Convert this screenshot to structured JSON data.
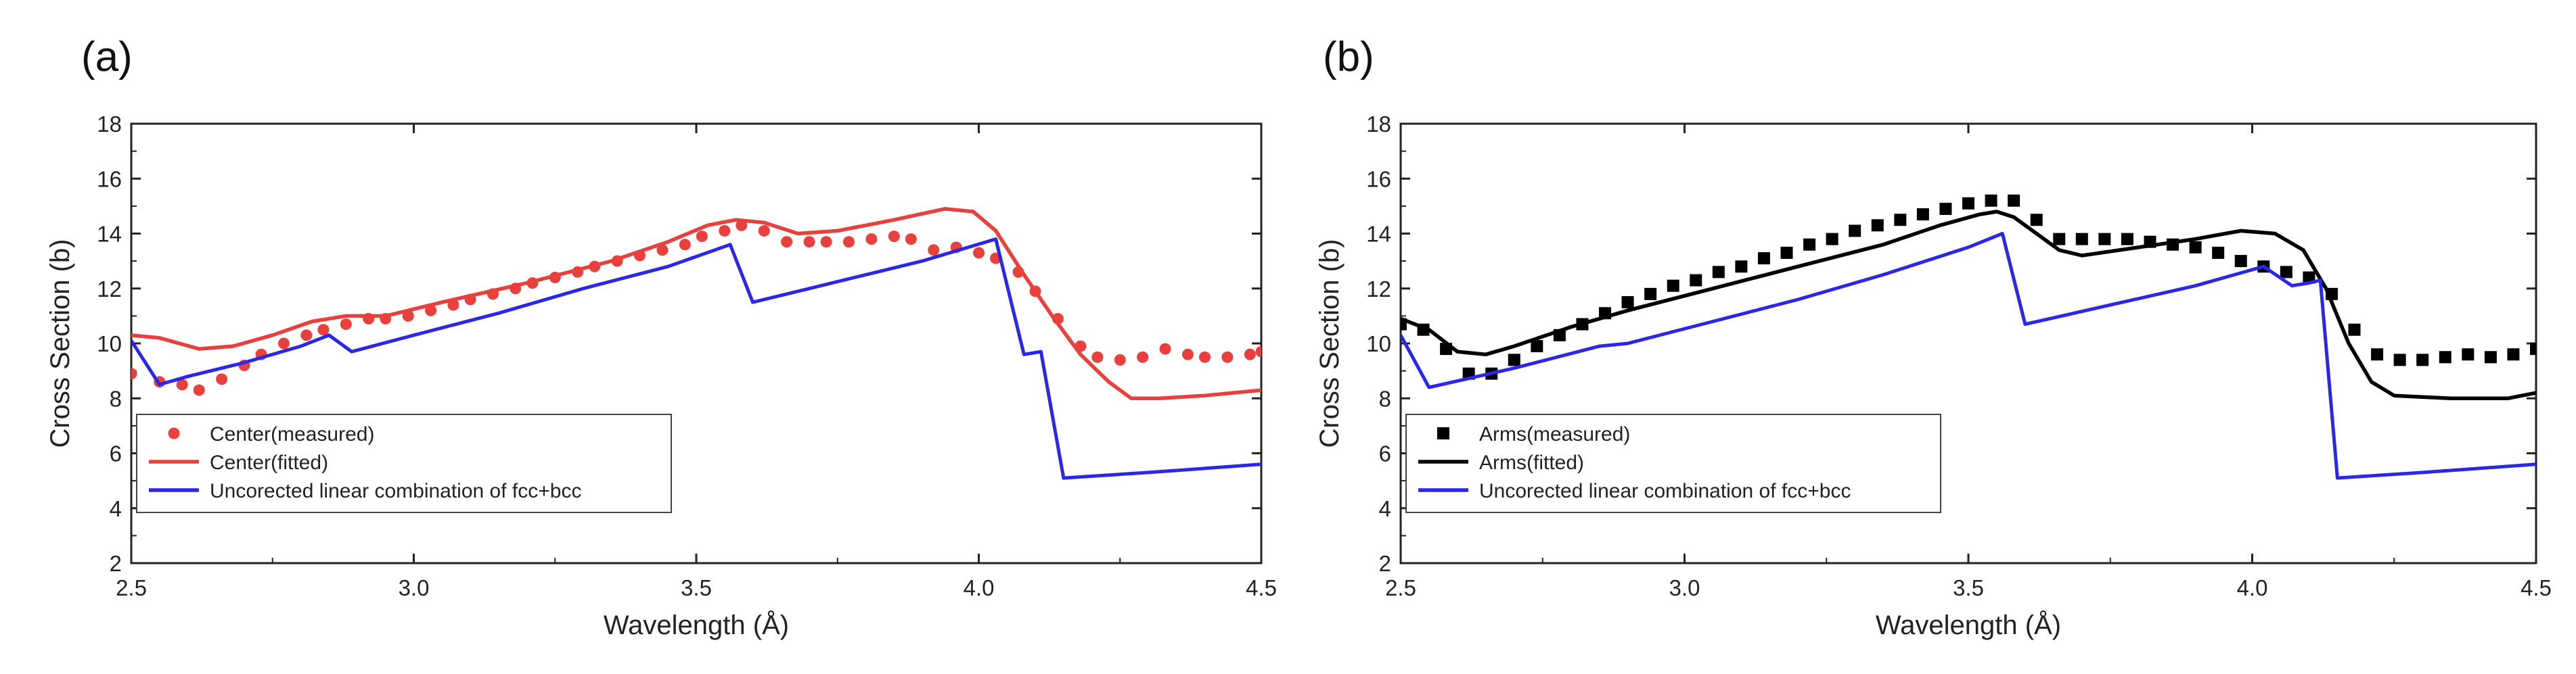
{
  "chart_data": [
    {
      "panel_label": "(a)",
      "type": "line",
      "xlabel": "Wavelength (Å)",
      "ylabel": "Cross Section (b)",
      "xlim": [
        2.5,
        4.5
      ],
      "ylim": [
        2,
        18
      ],
      "x_ticks": [
        "2.5",
        "3.0",
        "3.5",
        "4.0",
        "4.5"
      ],
      "y_ticks": [
        "2",
        "4",
        "6",
        "8",
        "10",
        "12",
        "14",
        "16",
        "18"
      ],
      "legend_position": "bottom-left",
      "series": [
        {
          "name": "Center(measured)",
          "style": "dots",
          "color": "#e8403c",
          "points": [
            [
              2.5,
              8.9
            ],
            [
              2.55,
              8.6
            ],
            [
              2.59,
              8.5
            ],
            [
              2.62,
              8.3
            ],
            [
              2.66,
              8.7
            ],
            [
              2.7,
              9.2
            ],
            [
              2.73,
              9.6
            ],
            [
              2.77,
              10.0
            ],
            [
              2.81,
              10.3
            ],
            [
              2.84,
              10.5
            ],
            [
              2.88,
              10.7
            ],
            [
              2.92,
              10.9
            ],
            [
              2.95,
              10.9
            ],
            [
              2.99,
              11.0
            ],
            [
              3.03,
              11.2
            ],
            [
              3.07,
              11.4
            ],
            [
              3.1,
              11.6
            ],
            [
              3.14,
              11.8
            ],
            [
              3.18,
              12.0
            ],
            [
              3.21,
              12.2
            ],
            [
              3.25,
              12.4
            ],
            [
              3.29,
              12.6
            ],
            [
              3.32,
              12.8
            ],
            [
              3.36,
              13.0
            ],
            [
              3.4,
              13.2
            ],
            [
              3.44,
              13.4
            ],
            [
              3.48,
              13.6
            ],
            [
              3.51,
              13.9
            ],
            [
              3.55,
              14.1
            ],
            [
              3.58,
              14.3
            ],
            [
              3.62,
              14.1
            ],
            [
              3.66,
              13.7
            ],
            [
              3.7,
              13.7
            ],
            [
              3.73,
              13.7
            ],
            [
              3.77,
              13.7
            ],
            [
              3.81,
              13.8
            ],
            [
              3.85,
              13.9
            ],
            [
              3.88,
              13.8
            ],
            [
              3.92,
              13.4
            ],
            [
              3.96,
              13.5
            ],
            [
              4.0,
              13.3
            ],
            [
              4.03,
              13.1
            ],
            [
              4.07,
              12.6
            ],
            [
              4.1,
              11.9
            ],
            [
              4.14,
              10.9
            ],
            [
              4.18,
              9.9
            ],
            [
              4.21,
              9.5
            ],
            [
              4.25,
              9.4
            ],
            [
              4.29,
              9.5
            ],
            [
              4.33,
              9.8
            ],
            [
              4.37,
              9.6
            ],
            [
              4.4,
              9.5
            ],
            [
              4.44,
              9.5
            ],
            [
              4.48,
              9.6
            ],
            [
              4.5,
              9.7
            ]
          ]
        },
        {
          "name": "Center(fitted)",
          "style": "line",
          "color": "#e8403c",
          "points": [
            [
              2.5,
              10.3
            ],
            [
              2.55,
              10.2
            ],
            [
              2.62,
              9.8
            ],
            [
              2.68,
              9.9
            ],
            [
              2.75,
              10.3
            ],
            [
              2.82,
              10.8
            ],
            [
              2.88,
              11.0
            ],
            [
              2.95,
              11.0
            ],
            [
              3.05,
              11.5
            ],
            [
              3.2,
              12.2
            ],
            [
              3.35,
              13.0
            ],
            [
              3.45,
              13.7
            ],
            [
              3.52,
              14.3
            ],
            [
              3.57,
              14.5
            ],
            [
              3.62,
              14.4
            ],
            [
              3.68,
              14.0
            ],
            [
              3.75,
              14.1
            ],
            [
              3.85,
              14.5
            ],
            [
              3.94,
              14.9
            ],
            [
              3.99,
              14.8
            ],
            [
              4.03,
              14.1
            ],
            [
              4.08,
              12.5
            ],
            [
              4.13,
              11.0
            ],
            [
              4.18,
              9.6
            ],
            [
              4.23,
              8.6
            ],
            [
              4.27,
              8.0
            ],
            [
              4.32,
              8.0
            ],
            [
              4.4,
              8.1
            ],
            [
              4.5,
              8.3
            ]
          ]
        },
        {
          "name": "Uncorected linear combination of fcc+bcc",
          "style": "line",
          "color": "#2a28e6",
          "points": [
            [
              2.5,
              10.1
            ],
            [
              2.55,
              8.5
            ],
            [
              2.6,
              8.8
            ],
            [
              2.7,
              9.3
            ],
            [
              2.8,
              9.9
            ],
            [
              2.85,
              10.3
            ],
            [
              2.89,
              9.7
            ],
            [
              3.0,
              10.3
            ],
            [
              3.15,
              11.1
            ],
            [
              3.3,
              12.0
            ],
            [
              3.45,
              12.8
            ],
            [
              3.56,
              13.6
            ],
            [
              3.6,
              11.5
            ],
            [
              3.7,
              12.0
            ],
            [
              3.8,
              12.5
            ],
            [
              3.9,
              13.0
            ],
            [
              4.03,
              13.8
            ],
            [
              4.08,
              9.6
            ],
            [
              4.11,
              9.7
            ],
            [
              4.15,
              5.1
            ],
            [
              4.3,
              5.3
            ],
            [
              4.5,
              5.6
            ]
          ]
        }
      ]
    },
    {
      "panel_label": "(b)",
      "type": "line",
      "xlabel": "Wavelength (Å)",
      "ylabel": "Cross Section (b)",
      "xlim": [
        2.5,
        4.5
      ],
      "ylim": [
        2,
        18
      ],
      "x_ticks": [
        "2.5",
        "3.0",
        "3.5",
        "4.0",
        "4.5"
      ],
      "y_ticks": [
        "2",
        "4",
        "6",
        "8",
        "10",
        "12",
        "14",
        "16",
        "18"
      ],
      "legend_position": "bottom-left",
      "series": [
        {
          "name": "Arms(measured)",
          "style": "squares",
          "color": "#000000",
          "points": [
            [
              2.5,
              10.7
            ],
            [
              2.54,
              10.5
            ],
            [
              2.58,
              9.8
            ],
            [
              2.62,
              8.9
            ],
            [
              2.66,
              8.9
            ],
            [
              2.7,
              9.4
            ],
            [
              2.74,
              9.9
            ],
            [
              2.78,
              10.3
            ],
            [
              2.82,
              10.7
            ],
            [
              2.86,
              11.1
            ],
            [
              2.9,
              11.5
            ],
            [
              2.94,
              11.8
            ],
            [
              2.98,
              12.1
            ],
            [
              3.02,
              12.3
            ],
            [
              3.06,
              12.6
            ],
            [
              3.1,
              12.8
            ],
            [
              3.14,
              13.1
            ],
            [
              3.18,
              13.3
            ],
            [
              3.22,
              13.6
            ],
            [
              3.26,
              13.8
            ],
            [
              3.3,
              14.1
            ],
            [
              3.34,
              14.3
            ],
            [
              3.38,
              14.5
            ],
            [
              3.42,
              14.7
            ],
            [
              3.46,
              14.9
            ],
            [
              3.5,
              15.1
            ],
            [
              3.54,
              15.2
            ],
            [
              3.58,
              15.2
            ],
            [
              3.62,
              14.5
            ],
            [
              3.66,
              13.8
            ],
            [
              3.7,
              13.8
            ],
            [
              3.74,
              13.8
            ],
            [
              3.78,
              13.8
            ],
            [
              3.82,
              13.7
            ],
            [
              3.86,
              13.6
            ],
            [
              3.9,
              13.5
            ],
            [
              3.94,
              13.3
            ],
            [
              3.98,
              13.0
            ],
            [
              4.02,
              12.8
            ],
            [
              4.06,
              12.6
            ],
            [
              4.1,
              12.4
            ],
            [
              4.14,
              11.8
            ],
            [
              4.18,
              10.5
            ],
            [
              4.22,
              9.6
            ],
            [
              4.26,
              9.4
            ],
            [
              4.3,
              9.4
            ],
            [
              4.34,
              9.5
            ],
            [
              4.38,
              9.6
            ],
            [
              4.42,
              9.5
            ],
            [
              4.46,
              9.6
            ],
            [
              4.5,
              9.8
            ]
          ]
        },
        {
          "name": "Arms(fitted)",
          "style": "line",
          "color": "#000000",
          "points": [
            [
              2.5,
              10.9
            ],
            [
              2.55,
              10.5
            ],
            [
              2.6,
              9.7
            ],
            [
              2.65,
              9.6
            ],
            [
              2.7,
              9.9
            ],
            [
              2.8,
              10.6
            ],
            [
              2.9,
              11.2
            ],
            [
              3.05,
              12.0
            ],
            [
              3.2,
              12.8
            ],
            [
              3.35,
              13.6
            ],
            [
              3.45,
              14.3
            ],
            [
              3.52,
              14.7
            ],
            [
              3.55,
              14.8
            ],
            [
              3.58,
              14.6
            ],
            [
              3.62,
              14.0
            ],
            [
              3.66,
              13.4
            ],
            [
              3.7,
              13.2
            ],
            [
              3.8,
              13.5
            ],
            [
              3.9,
              13.8
            ],
            [
              3.98,
              14.1
            ],
            [
              4.04,
              14.0
            ],
            [
              4.09,
              13.4
            ],
            [
              4.13,
              12.0
            ],
            [
              4.17,
              10.0
            ],
            [
              4.21,
              8.6
            ],
            [
              4.25,
              8.1
            ],
            [
              4.35,
              8.0
            ],
            [
              4.45,
              8.0
            ],
            [
              4.5,
              8.2
            ]
          ]
        },
        {
          "name": "Uncorected linear combination of fcc+bcc",
          "style": "line",
          "color": "#2a28e6",
          "points": [
            [
              2.5,
              10.3
            ],
            [
              2.55,
              8.4
            ],
            [
              2.7,
              9.1
            ],
            [
              2.85,
              9.9
            ],
            [
              2.9,
              10.0
            ],
            [
              3.05,
              10.8
            ],
            [
              3.2,
              11.6
            ],
            [
              3.35,
              12.5
            ],
            [
              3.5,
              13.5
            ],
            [
              3.56,
              14.0
            ],
            [
              3.6,
              10.7
            ],
            [
              3.75,
              11.4
            ],
            [
              3.9,
              12.1
            ],
            [
              4.02,
              12.8
            ],
            [
              4.07,
              12.1
            ],
            [
              4.1,
              12.2
            ],
            [
              4.12,
              12.3
            ],
            [
              4.15,
              5.1
            ],
            [
              4.3,
              5.3
            ],
            [
              4.5,
              5.6
            ]
          ]
        }
      ]
    }
  ]
}
